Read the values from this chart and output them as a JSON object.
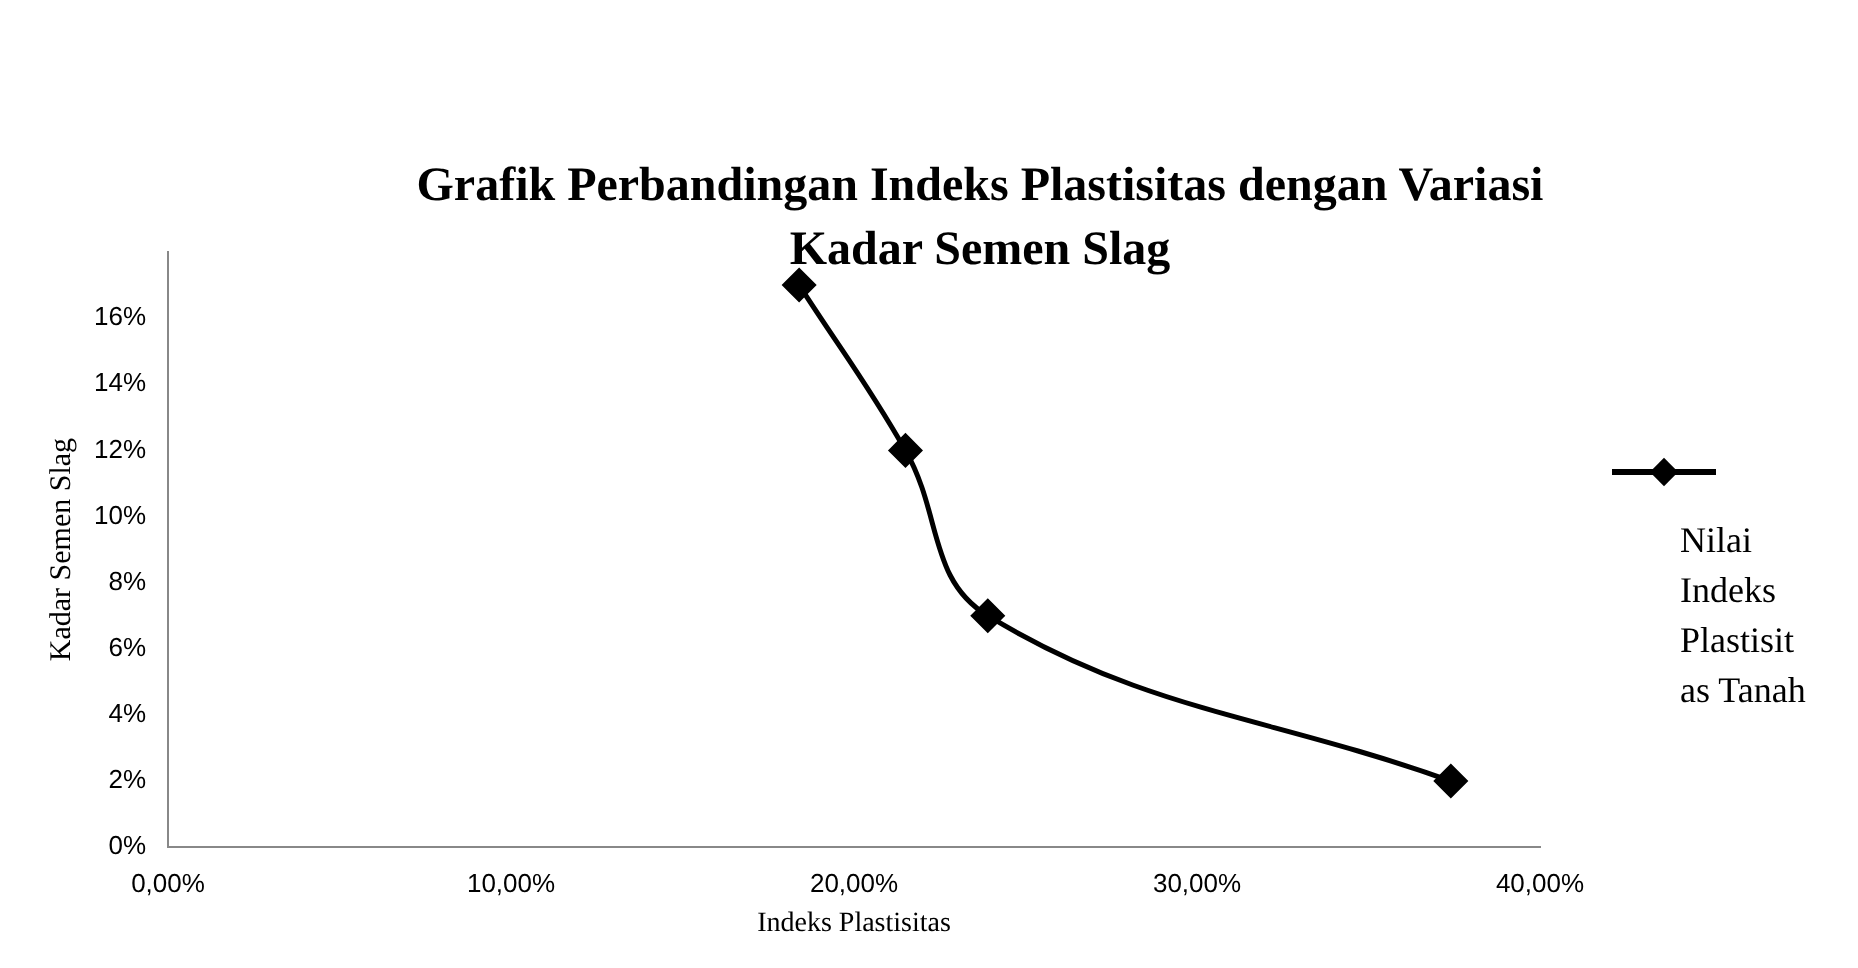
{
  "chart_data": {
    "type": "line",
    "title": "Grafik Perbandingan Indeks Plastisitas dengan Variasi Kadar Semen Slag",
    "xlabel": "Indeks Plastisitas",
    "ylabel": "Kadar Semen Slag",
    "x": [
      18.4,
      21.5,
      23.9,
      37.4
    ],
    "series": [
      {
        "name": "Nilai Indeks Plastisitas Tanah",
        "color": "#000000",
        "values": [
          17,
          12,
          7,
          2
        ]
      }
    ],
    "xlim": [
      0,
      40
    ],
    "xticks": [
      {
        "value": 0,
        "label": "0,00%"
      },
      {
        "value": 10,
        "label": "10,00%"
      },
      {
        "value": 20,
        "label": "20,00%"
      },
      {
        "value": 30,
        "label": "30,00%"
      },
      {
        "value": 40,
        "label": "40,00%"
      }
    ],
    "ylim": [
      0,
      18
    ],
    "yticks": [
      {
        "value": 0,
        "label": "0%"
      },
      {
        "value": 2,
        "label": "2%"
      },
      {
        "value": 4,
        "label": "4%"
      },
      {
        "value": 6,
        "label": "6%"
      },
      {
        "value": 8,
        "label": "8%"
      },
      {
        "value": 10,
        "label": "10%"
      },
      {
        "value": 12,
        "label": "12%"
      },
      {
        "value": 14,
        "label": "14%"
      },
      {
        "value": 16,
        "label": "16%"
      }
    ],
    "grid": false,
    "legend": "right",
    "marker": "diamond",
    "line_style": "solid"
  }
}
